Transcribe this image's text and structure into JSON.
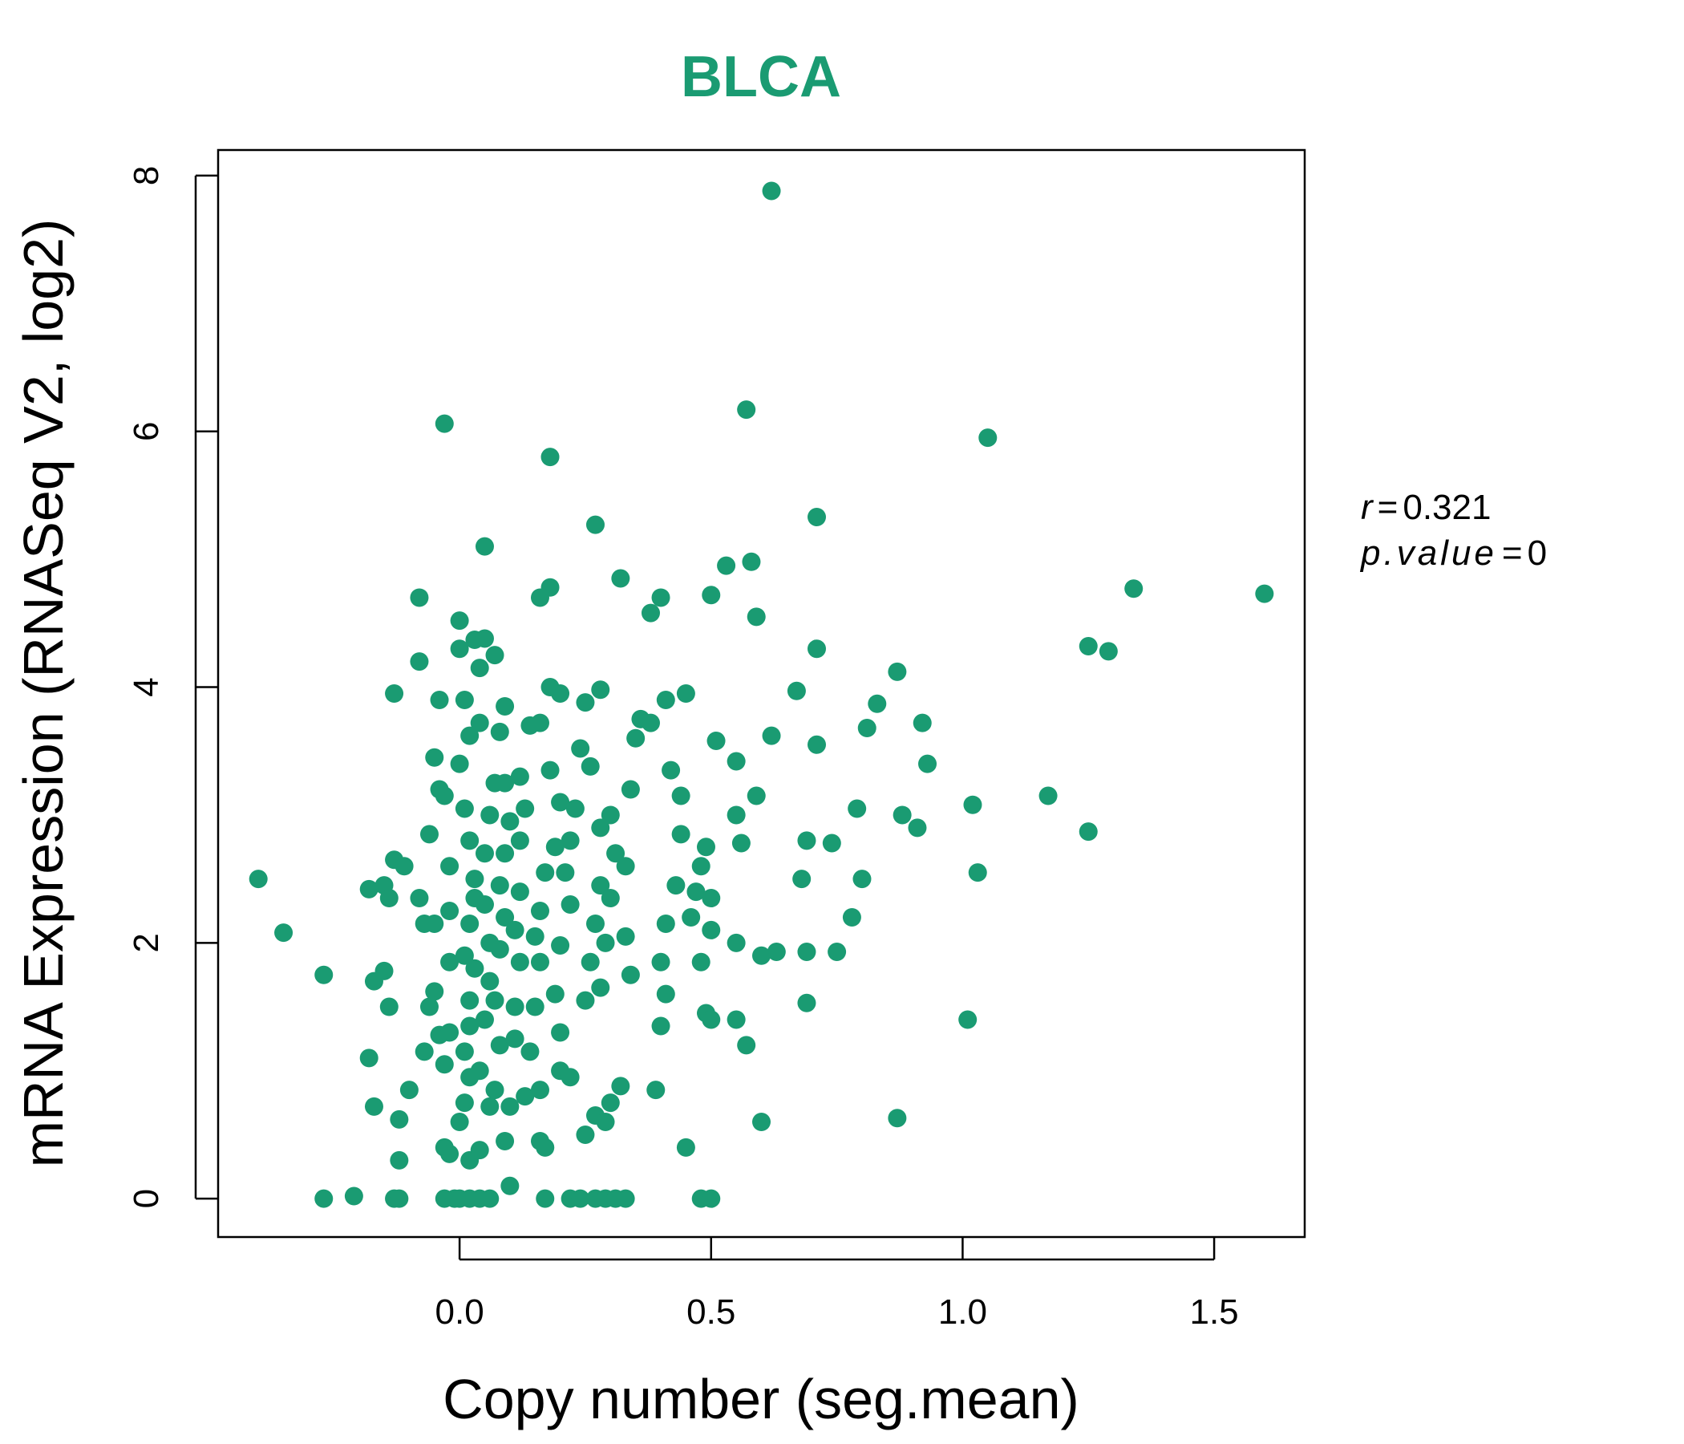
{
  "chart_data": {
    "type": "scatter",
    "title": "BLCA",
    "xlabel": "Copy number (seg.mean)",
    "ylabel": "mRNA Expression (RNASeq V2, log2)",
    "xlim": [
      -0.48,
      1.68
    ],
    "ylim": [
      -0.3,
      8.2
    ],
    "x_ticks": [
      0.0,
      0.5,
      1.0,
      1.5
    ],
    "x_tick_labels": [
      "0.0",
      "0.5",
      "1.0",
      "1.5"
    ],
    "y_ticks": [
      0,
      2,
      4,
      6,
      8
    ],
    "y_tick_labels": [
      "0",
      "2",
      "4",
      "6",
      "8"
    ],
    "grid": false,
    "colors": {
      "points": "#1a9b72",
      "title": "#1a9b72"
    },
    "annotation": {
      "r_symbol": "r",
      "r_value": "0.321",
      "p_symbol": "p.value",
      "p_value": "0"
    },
    "points": [
      [
        -0.4,
        2.5
      ],
      [
        -0.35,
        2.08
      ],
      [
        -0.27,
        1.75
      ],
      [
        -0.27,
        0
      ],
      [
        -0.21,
        0.02
      ],
      [
        -0.13,
        0
      ],
      [
        -0.12,
        0
      ],
      [
        -0.18,
        2.42
      ],
      [
        -0.15,
        2.45
      ],
      [
        -0.14,
        2.35
      ],
      [
        -0.13,
        2.65
      ],
      [
        -0.11,
        2.6
      ],
      [
        -0.08,
        2.35
      ],
      [
        -0.13,
        3.95
      ],
      [
        -0.08,
        4.2
      ],
      [
        -0.08,
        4.7
      ],
      [
        -0.03,
        6.06
      ],
      [
        -0.04,
        3.9
      ],
      [
        -0.05,
        3.45
      ],
      [
        -0.17,
        1.7
      ],
      [
        -0.15,
        1.78
      ],
      [
        -0.14,
        1.5
      ],
      [
        -0.18,
        1.1
      ],
      [
        -0.17,
        0.72
      ],
      [
        -0.12,
        0.62
      ],
      [
        -0.12,
        0.3
      ],
      [
        -0.1,
        0.85
      ],
      [
        -0.07,
        1.15
      ],
      [
        -0.06,
        1.5
      ],
      [
        -0.05,
        1.62
      ],
      [
        -0.04,
        1.28
      ],
      [
        -0.07,
        2.15
      ],
      [
        -0.05,
        2.15
      ],
      [
        -0.06,
        2.85
      ],
      [
        -0.04,
        3.2
      ],
      [
        -0.03,
        3.15
      ],
      [
        -0.03,
        0.4
      ],
      [
        -0.02,
        0.35
      ],
      [
        -0.03,
        0
      ],
      [
        -0.01,
        0
      ],
      [
        0.0,
        0
      ],
      [
        0.02,
        0
      ],
      [
        0.04,
        0
      ],
      [
        0.06,
        0
      ],
      [
        -0.03,
        1.05
      ],
      [
        -0.02,
        1.3
      ],
      [
        -0.02,
        1.85
      ],
      [
        -0.02,
        2.25
      ],
      [
        -0.02,
        2.6
      ],
      [
        0.0,
        4.52
      ],
      [
        0.0,
        4.3
      ],
      [
        0.01,
        3.9
      ],
      [
        0.02,
        3.62
      ],
      [
        0.03,
        4.37
      ],
      [
        0.05,
        4.38
      ],
      [
        0.04,
        4.15
      ],
      [
        0.04,
        3.72
      ],
      [
        0.07,
        4.25
      ],
      [
        0.05,
        5.1
      ],
      [
        0.0,
        3.4
      ],
      [
        0.01,
        3.05
      ],
      [
        0.02,
        2.8
      ],
      [
        0.03,
        2.5
      ],
      [
        0.03,
        2.35
      ],
      [
        0.02,
        2.15
      ],
      [
        0.01,
        1.9
      ],
      [
        0.03,
        1.8
      ],
      [
        0.02,
        1.55
      ],
      [
        0.02,
        1.35
      ],
      [
        0.01,
        1.15
      ],
      [
        0.02,
        0.95
      ],
      [
        0.01,
        0.75
      ],
      [
        0.0,
        0.6
      ],
      [
        0.02,
        0.3
      ],
      [
        0.04,
        0.38
      ],
      [
        0.04,
        1.0
      ],
      [
        0.05,
        1.4
      ],
      [
        0.06,
        1.7
      ],
      [
        0.06,
        2.0
      ],
      [
        0.05,
        2.3
      ],
      [
        0.05,
        2.7
      ],
      [
        0.06,
        3.0
      ],
      [
        0.07,
        3.25
      ],
      [
        0.08,
        3.65
      ],
      [
        0.09,
        3.85
      ],
      [
        0.09,
        3.25
      ],
      [
        0.1,
        2.95
      ],
      [
        0.09,
        2.7
      ],
      [
        0.08,
        2.45
      ],
      [
        0.09,
        2.2
      ],
      [
        0.08,
        1.95
      ],
      [
        0.07,
        1.55
      ],
      [
        0.08,
        1.2
      ],
      [
        0.07,
        0.85
      ],
      [
        0.06,
        0.72
      ],
      [
        0.09,
        0.45
      ],
      [
        0.1,
        0.72
      ],
      [
        0.1,
        0.1
      ],
      [
        0.11,
        1.25
      ],
      [
        0.11,
        1.5
      ],
      [
        0.12,
        1.85
      ],
      [
        0.11,
        2.1
      ],
      [
        0.12,
        2.4
      ],
      [
        0.12,
        2.8
      ],
      [
        0.13,
        3.05
      ],
      [
        0.12,
        3.3
      ],
      [
        0.14,
        3.7
      ],
      [
        0.16,
        3.72
      ],
      [
        0.16,
        4.7
      ],
      [
        0.18,
        4.78
      ],
      [
        0.18,
        4.0
      ],
      [
        0.2,
        3.95
      ],
      [
        0.18,
        3.35
      ],
      [
        0.2,
        3.1
      ],
      [
        0.19,
        2.75
      ],
      [
        0.17,
        2.55
      ],
      [
        0.16,
        2.25
      ],
      [
        0.15,
        2.05
      ],
      [
        0.16,
        1.85
      ],
      [
        0.15,
        1.5
      ],
      [
        0.14,
        1.15
      ],
      [
        0.13,
        0.8
      ],
      [
        0.16,
        0.85
      ],
      [
        0.16,
        0.45
      ],
      [
        0.17,
        0.4
      ],
      [
        0.17,
        0
      ],
      [
        0.22,
        0
      ],
      [
        0.24,
        0
      ],
      [
        0.27,
        0
      ],
      [
        0.29,
        0
      ],
      [
        0.31,
        0
      ],
      [
        0.33,
        0
      ],
      [
        0.18,
        5.8
      ],
      [
        0.27,
        5.27
      ],
      [
        0.32,
        4.85
      ],
      [
        0.38,
        4.58
      ],
      [
        0.4,
        4.7
      ],
      [
        0.26,
        3.38
      ],
      [
        0.24,
        3.52
      ],
      [
        0.25,
        3.88
      ],
      [
        0.28,
        3.98
      ],
      [
        0.23,
        3.05
      ],
      [
        0.22,
        2.8
      ],
      [
        0.21,
        2.55
      ],
      [
        0.22,
        2.3
      ],
      [
        0.2,
        1.98
      ],
      [
        0.19,
        1.6
      ],
      [
        0.2,
        1.3
      ],
      [
        0.2,
        1.0
      ],
      [
        0.22,
        0.95
      ],
      [
        0.25,
        1.55
      ],
      [
        0.26,
        1.85
      ],
      [
        0.27,
        2.15
      ],
      [
        0.28,
        2.45
      ],
      [
        0.28,
        2.9
      ],
      [
        0.3,
        3.0
      ],
      [
        0.31,
        2.7
      ],
      [
        0.3,
        2.35
      ],
      [
        0.29,
        2.0
      ],
      [
        0.28,
        1.65
      ],
      [
        0.27,
        0.65
      ],
      [
        0.25,
        0.5
      ],
      [
        0.29,
        0.6
      ],
      [
        0.3,
        0.75
      ],
      [
        0.32,
        0.88
      ],
      [
        0.34,
        1.75
      ],
      [
        0.33,
        2.05
      ],
      [
        0.33,
        2.6
      ],
      [
        0.34,
        3.2
      ],
      [
        0.35,
        3.6
      ],
      [
        0.36,
        3.75
      ],
      [
        0.38,
        3.72
      ],
      [
        0.41,
        3.9
      ],
      [
        0.42,
        3.35
      ],
      [
        0.44,
        3.15
      ],
      [
        0.44,
        2.85
      ],
      [
        0.43,
        2.45
      ],
      [
        0.41,
        2.15
      ],
      [
        0.4,
        1.85
      ],
      [
        0.41,
        1.6
      ],
      [
        0.4,
        1.35
      ],
      [
        0.39,
        0.85
      ],
      [
        0.45,
        3.95
      ],
      [
        0.47,
        2.4
      ],
      [
        0.46,
        2.2
      ],
      [
        0.48,
        2.6
      ],
      [
        0.49,
        2.75
      ],
      [
        0.5,
        2.35
      ],
      [
        0.48,
        1.85
      ],
      [
        0.5,
        2.1
      ],
      [
        0.49,
        1.45
      ],
      [
        0.5,
        1.4
      ],
      [
        0.45,
        0.4
      ],
      [
        0.48,
        0
      ],
      [
        0.5,
        0
      ],
      [
        0.51,
        3.58
      ],
      [
        0.5,
        4.72
      ],
      [
        0.53,
        4.95
      ],
      [
        0.55,
        3.42
      ],
      [
        0.55,
        3.0
      ],
      [
        0.56,
        2.78
      ],
      [
        0.55,
        2.0
      ],
      [
        0.55,
        1.4
      ],
      [
        0.57,
        1.2
      ],
      [
        0.57,
        6.17
      ],
      [
        0.59,
        4.55
      ],
      [
        0.59,
        3.15
      ],
      [
        0.6,
        1.9
      ],
      [
        0.6,
        0.6
      ],
      [
        0.62,
        7.88
      ],
      [
        0.62,
        3.62
      ],
      [
        0.63,
        1.93
      ],
      [
        0.58,
        4.98
      ],
      [
        0.67,
        3.97
      ],
      [
        0.68,
        2.5
      ],
      [
        0.69,
        2.8
      ],
      [
        0.69,
        1.93
      ],
      [
        0.69,
        1.53
      ],
      [
        0.71,
        5.33
      ],
      [
        0.71,
        4.3
      ],
      [
        0.71,
        3.55
      ],
      [
        0.74,
        2.78
      ],
      [
        0.75,
        1.93
      ],
      [
        0.78,
        2.2
      ],
      [
        0.79,
        3.05
      ],
      [
        0.8,
        2.5
      ],
      [
        0.81,
        3.68
      ],
      [
        0.83,
        3.87
      ],
      [
        0.87,
        4.12
      ],
      [
        0.87,
        0.63
      ],
      [
        0.88,
        3.0
      ],
      [
        0.91,
        2.9
      ],
      [
        0.92,
        3.72
      ],
      [
        0.93,
        3.4
      ],
      [
        1.01,
        1.4
      ],
      [
        1.02,
        3.08
      ],
      [
        1.03,
        2.55
      ],
      [
        1.05,
        5.95
      ],
      [
        1.17,
        3.15
      ],
      [
        1.25,
        2.87
      ],
      [
        1.25,
        4.32
      ],
      [
        1.29,
        4.28
      ],
      [
        1.34,
        4.77
      ],
      [
        1.6,
        4.73
      ]
    ]
  }
}
